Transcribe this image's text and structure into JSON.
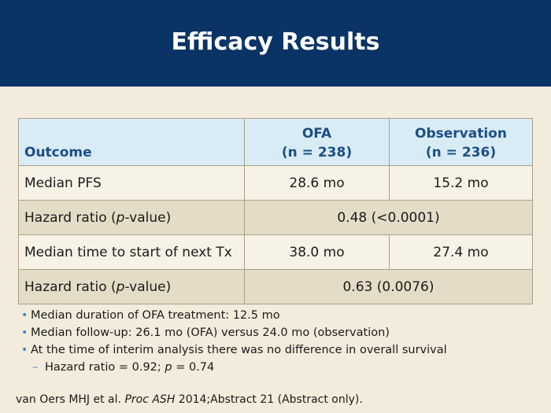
{
  "title": "Efficacy Results",
  "table": {
    "headers": {
      "outcome": "Outcome",
      "col1_line1": "OFA",
      "col1_line2": "(n = 238)",
      "col2_line1": "Observation",
      "col2_line2": "(n = 236)"
    },
    "rows": [
      {
        "label": "Median PFS",
        "col1": "28.6 mo",
        "col2": "15.2 mo"
      },
      {
        "label_pre": "Hazard ratio (",
        "label_italic": "p",
        "label_post": "-value)",
        "merged": "0.48 (<0.0001)"
      },
      {
        "label": "Median time to start of next Tx",
        "col1": "38.0 mo",
        "col2": "27.4 mo"
      },
      {
        "label_pre": "Hazard ratio (",
        "label_italic": "p",
        "label_post": "-value)",
        "merged": "0.63 (0.0076)"
      }
    ]
  },
  "bullets": [
    "Median duration of OFA treatment: 12.5 mo",
    "Median follow-up: 26.1 mo (OFA) versus 24.0 mo (observation)",
    "At the time of interim analysis there was no difference in overall survival"
  ],
  "sub_bullet": {
    "pre": "Hazard ratio = 0.92; ",
    "italic": "p",
    "post": " = 0.74"
  },
  "reference": {
    "pre": "van Oers MHJ et al. ",
    "italic": "Proc ASH",
    "post": " 2014;Abstract 21 (Abstract only)."
  },
  "colors": {
    "header_bg": "#0a3366",
    "table_header_bg": "#d9ebf5",
    "table_header_text": "#1c4f87",
    "row_light": "#f7f2e6",
    "row_dark": "#e5dcc7",
    "bullet": "#3b86c6",
    "page_bg": "#f3ecdc"
  }
}
